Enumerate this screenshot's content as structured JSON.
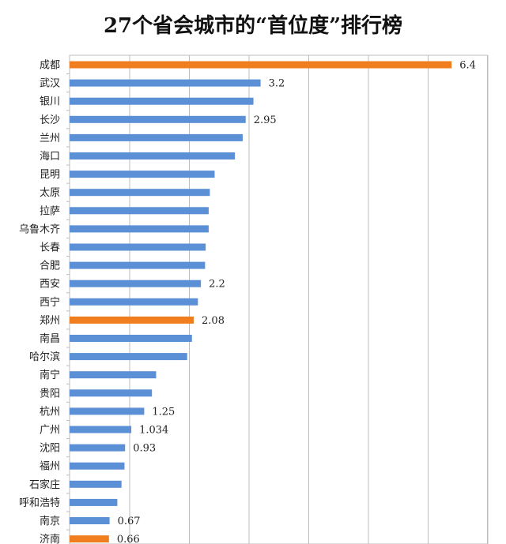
{
  "chart_data": {
    "type": "bar",
    "orientation": "horizontal",
    "title": "27个省会城市的“首位度”排行榜",
    "xlabel": "",
    "ylabel": "",
    "xlim": [
      0,
      7
    ],
    "grid": true,
    "legend": "none",
    "colors": {
      "default": "#5b8fd6",
      "highlight": "#f07d1e"
    },
    "categories": [
      "成都",
      "武汉",
      "银川",
      "长沙",
      "兰州",
      "海口",
      "昆明",
      "太原",
      "拉萨",
      "乌鲁木齐",
      "长春",
      "合肥",
      "西安",
      "西宁",
      "郑州",
      "南昌",
      "哈尔滨",
      "南宁",
      "贵阳",
      "杭州",
      "广州",
      "沈阳",
      "福州",
      "石家庄",
      "呼和浩特",
      "南京",
      "济南"
    ],
    "values": [
      6.4,
      3.2,
      3.08,
      2.95,
      2.9,
      2.77,
      2.43,
      2.35,
      2.33,
      2.33,
      2.28,
      2.27,
      2.2,
      2.15,
      2.08,
      2.05,
      1.97,
      1.45,
      1.38,
      1.25,
      1.034,
      0.93,
      0.92,
      0.87,
      0.8,
      0.67,
      0.66
    ],
    "highlight": [
      "成都",
      "郑州",
      "济南"
    ],
    "data_labels": [
      "6.4",
      "3.2",
      "",
      "2.95",
      "",
      "",
      "",
      "",
      "",
      "",
      "",
      "",
      "2.2",
      "",
      "2.08",
      "",
      "",
      "",
      "",
      "1.25",
      "1.034",
      "0.93",
      "",
      "",
      "",
      "0.67",
      "0.66"
    ]
  }
}
